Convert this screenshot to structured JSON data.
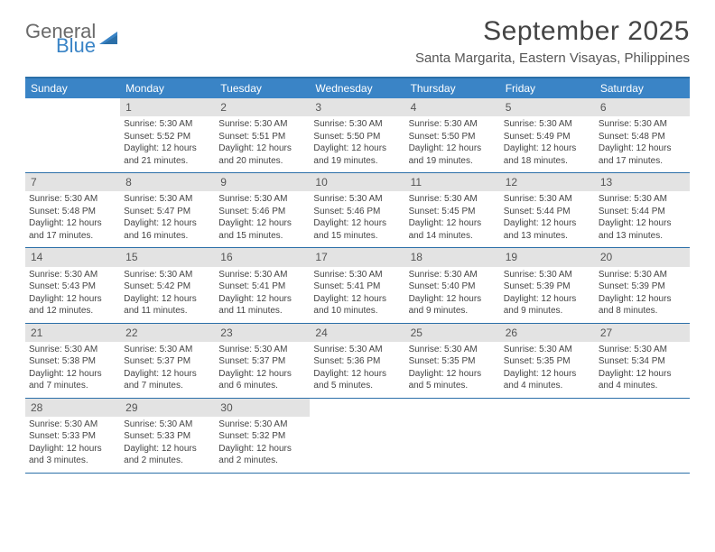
{
  "logo": {
    "word1": "General",
    "word2": "Blue",
    "gray": "#6a6a6a",
    "blue": "#3a84c6"
  },
  "title": "September 2025",
  "location": "Santa Margarita, Eastern Visayas, Philippines",
  "colors": {
    "header_bar": "#3a84c6",
    "header_border": "#2b6fa8",
    "daynum_bg": "#e3e3e3",
    "text": "#444444"
  },
  "dow": [
    "Sunday",
    "Monday",
    "Tuesday",
    "Wednesday",
    "Thursday",
    "Friday",
    "Saturday"
  ],
  "weeks": [
    [
      null,
      {
        "d": "1",
        "sr": "5:30 AM",
        "ss": "5:52 PM",
        "dl": "12 hours and 21 minutes."
      },
      {
        "d": "2",
        "sr": "5:30 AM",
        "ss": "5:51 PM",
        "dl": "12 hours and 20 minutes."
      },
      {
        "d": "3",
        "sr": "5:30 AM",
        "ss": "5:50 PM",
        "dl": "12 hours and 19 minutes."
      },
      {
        "d": "4",
        "sr": "5:30 AM",
        "ss": "5:50 PM",
        "dl": "12 hours and 19 minutes."
      },
      {
        "d": "5",
        "sr": "5:30 AM",
        "ss": "5:49 PM",
        "dl": "12 hours and 18 minutes."
      },
      {
        "d": "6",
        "sr": "5:30 AM",
        "ss": "5:48 PM",
        "dl": "12 hours and 17 minutes."
      }
    ],
    [
      {
        "d": "7",
        "sr": "5:30 AM",
        "ss": "5:48 PM",
        "dl": "12 hours and 17 minutes."
      },
      {
        "d": "8",
        "sr": "5:30 AM",
        "ss": "5:47 PM",
        "dl": "12 hours and 16 minutes."
      },
      {
        "d": "9",
        "sr": "5:30 AM",
        "ss": "5:46 PM",
        "dl": "12 hours and 15 minutes."
      },
      {
        "d": "10",
        "sr": "5:30 AM",
        "ss": "5:46 PM",
        "dl": "12 hours and 15 minutes."
      },
      {
        "d": "11",
        "sr": "5:30 AM",
        "ss": "5:45 PM",
        "dl": "12 hours and 14 minutes."
      },
      {
        "d": "12",
        "sr": "5:30 AM",
        "ss": "5:44 PM",
        "dl": "12 hours and 13 minutes."
      },
      {
        "d": "13",
        "sr": "5:30 AM",
        "ss": "5:44 PM",
        "dl": "12 hours and 13 minutes."
      }
    ],
    [
      {
        "d": "14",
        "sr": "5:30 AM",
        "ss": "5:43 PM",
        "dl": "12 hours and 12 minutes."
      },
      {
        "d": "15",
        "sr": "5:30 AM",
        "ss": "5:42 PM",
        "dl": "12 hours and 11 minutes."
      },
      {
        "d": "16",
        "sr": "5:30 AM",
        "ss": "5:41 PM",
        "dl": "12 hours and 11 minutes."
      },
      {
        "d": "17",
        "sr": "5:30 AM",
        "ss": "5:41 PM",
        "dl": "12 hours and 10 minutes."
      },
      {
        "d": "18",
        "sr": "5:30 AM",
        "ss": "5:40 PM",
        "dl": "12 hours and 9 minutes."
      },
      {
        "d": "19",
        "sr": "5:30 AM",
        "ss": "5:39 PM",
        "dl": "12 hours and 9 minutes."
      },
      {
        "d": "20",
        "sr": "5:30 AM",
        "ss": "5:39 PM",
        "dl": "12 hours and 8 minutes."
      }
    ],
    [
      {
        "d": "21",
        "sr": "5:30 AM",
        "ss": "5:38 PM",
        "dl": "12 hours and 7 minutes."
      },
      {
        "d": "22",
        "sr": "5:30 AM",
        "ss": "5:37 PM",
        "dl": "12 hours and 7 minutes."
      },
      {
        "d": "23",
        "sr": "5:30 AM",
        "ss": "5:37 PM",
        "dl": "12 hours and 6 minutes."
      },
      {
        "d": "24",
        "sr": "5:30 AM",
        "ss": "5:36 PM",
        "dl": "12 hours and 5 minutes."
      },
      {
        "d": "25",
        "sr": "5:30 AM",
        "ss": "5:35 PM",
        "dl": "12 hours and 5 minutes."
      },
      {
        "d": "26",
        "sr": "5:30 AM",
        "ss": "5:35 PM",
        "dl": "12 hours and 4 minutes."
      },
      {
        "d": "27",
        "sr": "5:30 AM",
        "ss": "5:34 PM",
        "dl": "12 hours and 4 minutes."
      }
    ],
    [
      {
        "d": "28",
        "sr": "5:30 AM",
        "ss": "5:33 PM",
        "dl": "12 hours and 3 minutes."
      },
      {
        "d": "29",
        "sr": "5:30 AM",
        "ss": "5:33 PM",
        "dl": "12 hours and 2 minutes."
      },
      {
        "d": "30",
        "sr": "5:30 AM",
        "ss": "5:32 PM",
        "dl": "12 hours and 2 minutes."
      },
      null,
      null,
      null,
      null
    ]
  ],
  "labels": {
    "sunrise": "Sunrise:",
    "sunset": "Sunset:",
    "daylight": "Daylight:"
  }
}
